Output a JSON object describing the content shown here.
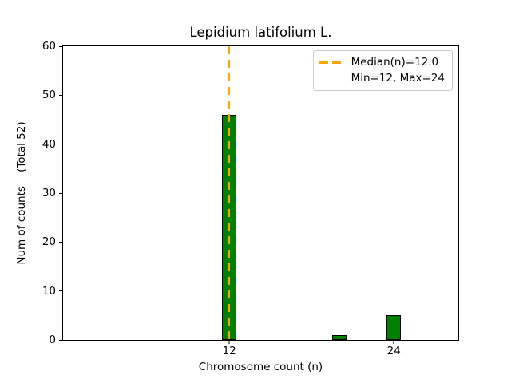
{
  "figure": {
    "background": "#ffffff"
  },
  "chart_data": {
    "type": "bar",
    "title": "Lepidium latifolium L.",
    "xlabel": "Chromosome count (n)",
    "ylabel": "Num of counts    (Total 52)",
    "total_counts": 52,
    "x": [
      12,
      20,
      24
    ],
    "values": [
      46,
      1,
      5
    ],
    "bar_width": 1.05,
    "xlim": [
      -0.12,
      28.7
    ],
    "ylim": [
      0,
      60
    ],
    "xticks": [
      12,
      24
    ],
    "yticks": [
      0,
      10,
      20,
      30,
      40,
      50,
      60
    ],
    "grid": false,
    "median_line": {
      "value": 12.0,
      "style": "dashed"
    },
    "legend": {
      "position": "upper-right",
      "entries": [
        "Median(n)=12.0",
        "Min=12, Max=24"
      ]
    },
    "colors": {
      "bar_fill": "#008000",
      "bar_edge": "#000000",
      "median_line": "#FFA500",
      "axis": "#000000",
      "legend_border": "#cccccc",
      "text": "#000000"
    }
  }
}
